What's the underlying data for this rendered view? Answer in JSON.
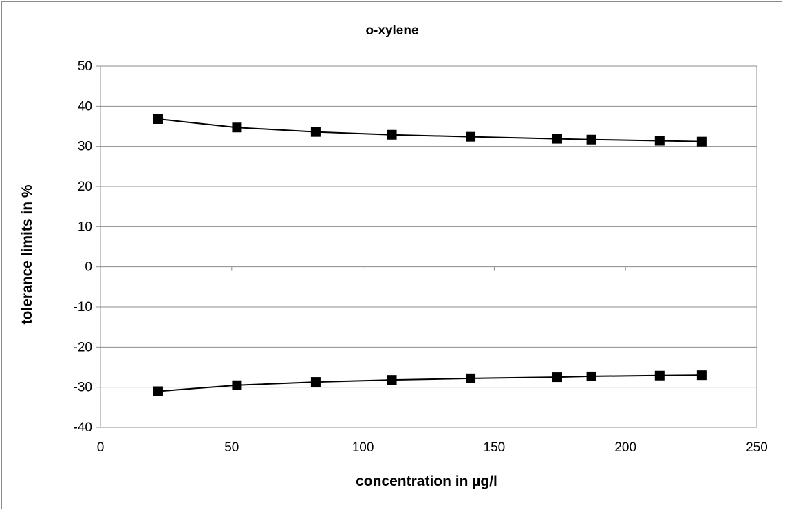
{
  "chart_data": {
    "type": "line",
    "title": "o-xylene",
    "xlabel": "concentration in µg/l",
    "ylabel": "tolerance limits in %",
    "xlim": [
      0,
      250
    ],
    "ylim": [
      -40,
      50
    ],
    "x_ticks": [
      "0",
      "50",
      "100",
      "150",
      "200",
      "250"
    ],
    "y_ticks": [
      "50",
      "40",
      "30",
      "20",
      "10",
      "0",
      "-10",
      "-20",
      "-30",
      "-40"
    ],
    "grid": "horizontal",
    "legend": "none",
    "marker": "square",
    "line_color": "#000000",
    "series": [
      {
        "x": [
          22,
          52,
          82,
          111,
          141,
          174,
          187,
          213,
          229
        ],
        "y": [
          36.8,
          34.7,
          33.6,
          32.9,
          32.4,
          31.9,
          31.7,
          31.4,
          31.2
        ]
      },
      {
        "x": [
          22,
          52,
          82,
          111,
          141,
          174,
          187,
          213,
          229
        ],
        "y": [
          -31.0,
          -29.5,
          -28.7,
          -28.2,
          -27.8,
          -27.5,
          -27.3,
          -27.1,
          -27.0
        ]
      }
    ]
  }
}
